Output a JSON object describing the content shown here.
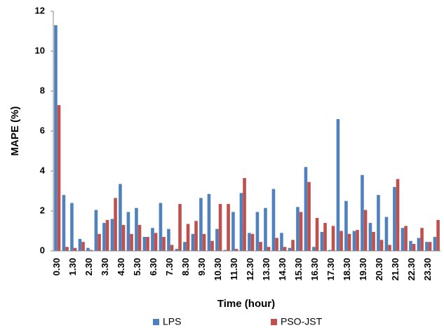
{
  "chart_data": {
    "type": "bar",
    "categories": [
      "0.30",
      null,
      "1.30",
      null,
      "2.30",
      null,
      "3.30",
      null,
      "4.30",
      null,
      "5.30",
      null,
      "6.30",
      null,
      "7.30",
      null,
      "8.30",
      null,
      "9.30",
      null,
      "10.30",
      null,
      "11.30",
      null,
      "12.30",
      null,
      "13.30",
      null,
      "14.30",
      null,
      "15.30",
      null,
      "16.30",
      null,
      "17.30",
      null,
      "18.30",
      null,
      "19.30",
      null,
      "20.30",
      null,
      "21.30",
      null,
      "22.30",
      null,
      "23.30",
      null
    ],
    "series": [
      {
        "name": "LPS",
        "color": "#4f81bd",
        "values": [
          11.3,
          2.8,
          2.4,
          0.6,
          0.15,
          2.05,
          1.4,
          1.6,
          3.35,
          1.95,
          2.15,
          0.7,
          1.15,
          2.4,
          1.1,
          0.1,
          0.45,
          0.85,
          2.65,
          2.85,
          1.1,
          0.05,
          1.95,
          2.9,
          0.9,
          1.95,
          2.15,
          3.1,
          0.9,
          0.15,
          2.2,
          4.2,
          0.2,
          0.95,
          0.05,
          6.6,
          2.5,
          1.0,
          3.8,
          1.4,
          2.8,
          1.7,
          3.2,
          1.15,
          0.5,
          0.65,
          0.45,
          0.7
        ]
      },
      {
        "name": "PSO-JST",
        "color": "#c0504d",
        "values": [
          7.3,
          0.2,
          0.15,
          0.45,
          0.05,
          0.85,
          1.55,
          2.65,
          1.3,
          0.85,
          1.3,
          0.7,
          0.9,
          0.7,
          0.3,
          2.35,
          1.35,
          1.5,
          0.85,
          0.5,
          2.35,
          2.35,
          0.1,
          3.65,
          0.85,
          0.45,
          0.2,
          0.65,
          0.2,
          0.55,
          1.95,
          3.45,
          1.65,
          1.4,
          1.25,
          1.0,
          0.85,
          1.05,
          2.05,
          0.95,
          0.55,
          0.3,
          3.6,
          1.25,
          0.35,
          1.15,
          0.45,
          1.55
        ]
      }
    ],
    "x_label": "Time (hour)",
    "y_label": "MAPE (%)",
    "ylim": [
      0,
      12
    ],
    "yticks": [
      0,
      2,
      4,
      6,
      8,
      10,
      12
    ],
    "grid": false,
    "legend": "bottom"
  }
}
